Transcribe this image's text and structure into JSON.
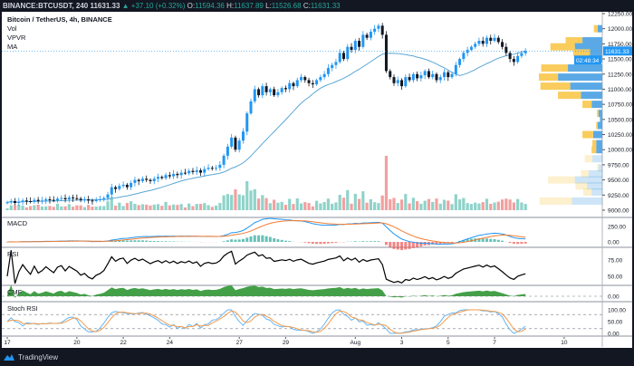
{
  "header": {
    "symbol": "BINANCE:BTCUSDT, 240",
    "last": "11631.33",
    "change": "+37.10 (+0.32%)",
    "o_label": "O:",
    "o": "11594.36",
    "h_label": "H:",
    "h": "11637.89",
    "l_label": "L:",
    "l": "11526.68",
    "c_label": "C:",
    "c": "11631.33"
  },
  "legend": {
    "title": "Bitcoin / TetherUS, 4h, BINANCE",
    "vol": "Vol",
    "vpvr": "VPVR",
    "ma": "MA",
    "macd": "MACD",
    "rsi": "RSI",
    "cmf": "CMF",
    "stoch": "Stoch RSI"
  },
  "footer": {
    "brand": "TradingView"
  },
  "colors": {
    "up": "#2196f3",
    "down": "#131722",
    "vol_up": "#8fd3c9",
    "vol_down": "#f2a0a0",
    "ma": "#5aa7d6",
    "vpvr_up": "#5aa9e6",
    "vpvr_down": "#f9cc5c",
    "macd": "#2196f3",
    "signal": "#f57c32",
    "rsi": "#000000",
    "cmf": "#43a047",
    "k": "#64b5f6",
    "d": "#f59b4c",
    "badge": "#2196f3"
  },
  "chart_data": {
    "type": "candlestick",
    "title": "Bitcoin / TetherUS, 4h, BINANCE",
    "ylim": [
      9000,
      12250
    ],
    "price_ticks": [
      "12250.00",
      "12000.00",
      "11750.00",
      "11500.00",
      "11250.00",
      "11000.00",
      "10750.00",
      "10500.00",
      "10250.00",
      "10000.00",
      "9750.00",
      "9500.00",
      "9250.00",
      "9000.00"
    ],
    "current_price": "11631.33",
    "countdown": "02:48:34",
    "x_ticks": [
      {
        "label": "17",
        "bar": 0
      },
      {
        "label": "20",
        "bar": 18
      },
      {
        "label": "22",
        "bar": 30
      },
      {
        "label": "24",
        "bar": 42
      },
      {
        "label": "27",
        "bar": 60
      },
      {
        "label": "29",
        "bar": 72
      },
      {
        "label": "Aug",
        "bar": 90
      },
      {
        "label": "3",
        "bar": 102
      },
      {
        "label": "5",
        "bar": 114
      },
      {
        "label": "7",
        "bar": 126
      },
      {
        "label": "10",
        "bar": 144
      }
    ],
    "closes": [
      9130,
      9150,
      9120,
      9140,
      9160,
      9150,
      9140,
      9170,
      9150,
      9160,
      9180,
      9170,
      9160,
      9190,
      9200,
      9180,
      9210,
      9200,
      9190,
      9170,
      9180,
      9160,
      9150,
      9170,
      9180,
      9200,
      9260,
      9380,
      9350,
      9400,
      9420,
      9380,
      9450,
      9500,
      9480,
      9520,
      9500,
      9480,
      9520,
      9550,
      9530,
      9580,
      9560,
      9600,
      9580,
      9620,
      9610,
      9650,
      9630,
      9660,
      9620,
      9680,
      9700,
      9690,
      9700,
      9750,
      9900,
      10050,
      10200,
      10000,
      10150,
      10300,
      10600,
      10800,
      11000,
      10900,
      11050,
      10950,
      11000,
      10900,
      10950,
      11020,
      11000,
      11100,
      11050,
      11150,
      11200,
      11150,
      11100,
      11080,
      11150,
      11200,
      11250,
      11350,
      11400,
      11450,
      11600,
      11500,
      11700,
      11650,
      11800,
      11700,
      11900,
      11850,
      11950,
      12000,
      12050,
      11900,
      11300,
      11200,
      11100,
      11150,
      11050,
      11200,
      11150,
      11250,
      11180,
      11230,
      11300,
      11200,
      11250,
      11150,
      11200,
      11280,
      11200,
      11250,
      11400,
      11500,
      11600,
      11650,
      11700,
      11750,
      11800,
      11750,
      11850,
      11800,
      11850,
      11780,
      11700,
      11600,
      11500,
      11450,
      11550,
      11594,
      11631
    ],
    "ma_period": 20,
    "vpvr": [
      {
        "price": 12000,
        "up": 6,
        "down": 5
      },
      {
        "price": 11800,
        "up": 26,
        "down": 22
      },
      {
        "price": 11700,
        "up": 36,
        "down": 32
      },
      {
        "price": 11600,
        "up": 16,
        "down": 22
      },
      {
        "price": 11500,
        "up": 18,
        "down": 15
      },
      {
        "price": 11350,
        "up": 45,
        "down": 35
      },
      {
        "price": 11200,
        "up": 58,
        "down": 25
      },
      {
        "price": 11050,
        "up": 42,
        "down": 39
      },
      {
        "price": 10900,
        "up": 28,
        "down": 30
      },
      {
        "price": 10750,
        "up": 14,
        "down": 12
      },
      {
        "price": 10600,
        "up": 5,
        "down": 2
      },
      {
        "price": 10500,
        "up": 3,
        "down": 0
      },
      {
        "price": 10400,
        "up": 6,
        "down": 2
      },
      {
        "price": 10250,
        "up": 12,
        "down": 14
      },
      {
        "price": 10100,
        "up": 8,
        "down": 5
      },
      {
        "price": 10000,
        "up": 8,
        "down": 6
      },
      {
        "price": 9850,
        "up": 13,
        "down": 10
      },
      {
        "price": 9700,
        "up": 5,
        "down": 2
      },
      {
        "price": 9600,
        "up": 18,
        "down": 10
      },
      {
        "price": 9500,
        "up": 36,
        "down": 35
      },
      {
        "price": 9400,
        "up": 20,
        "down": 15
      },
      {
        "price": 9300,
        "up": 14,
        "down": 11
      },
      {
        "price": 9150,
        "up": 40,
        "down": 42
      }
    ],
    "macd_ticks": [
      "250.00",
      "0.00"
    ],
    "rsi_ticks": [
      "75.00",
      "50.00"
    ],
    "cmf_ticks": [
      "0.00"
    ],
    "stoch_ticks": [
      "100.00",
      "50.00",
      "0.00"
    ]
  }
}
